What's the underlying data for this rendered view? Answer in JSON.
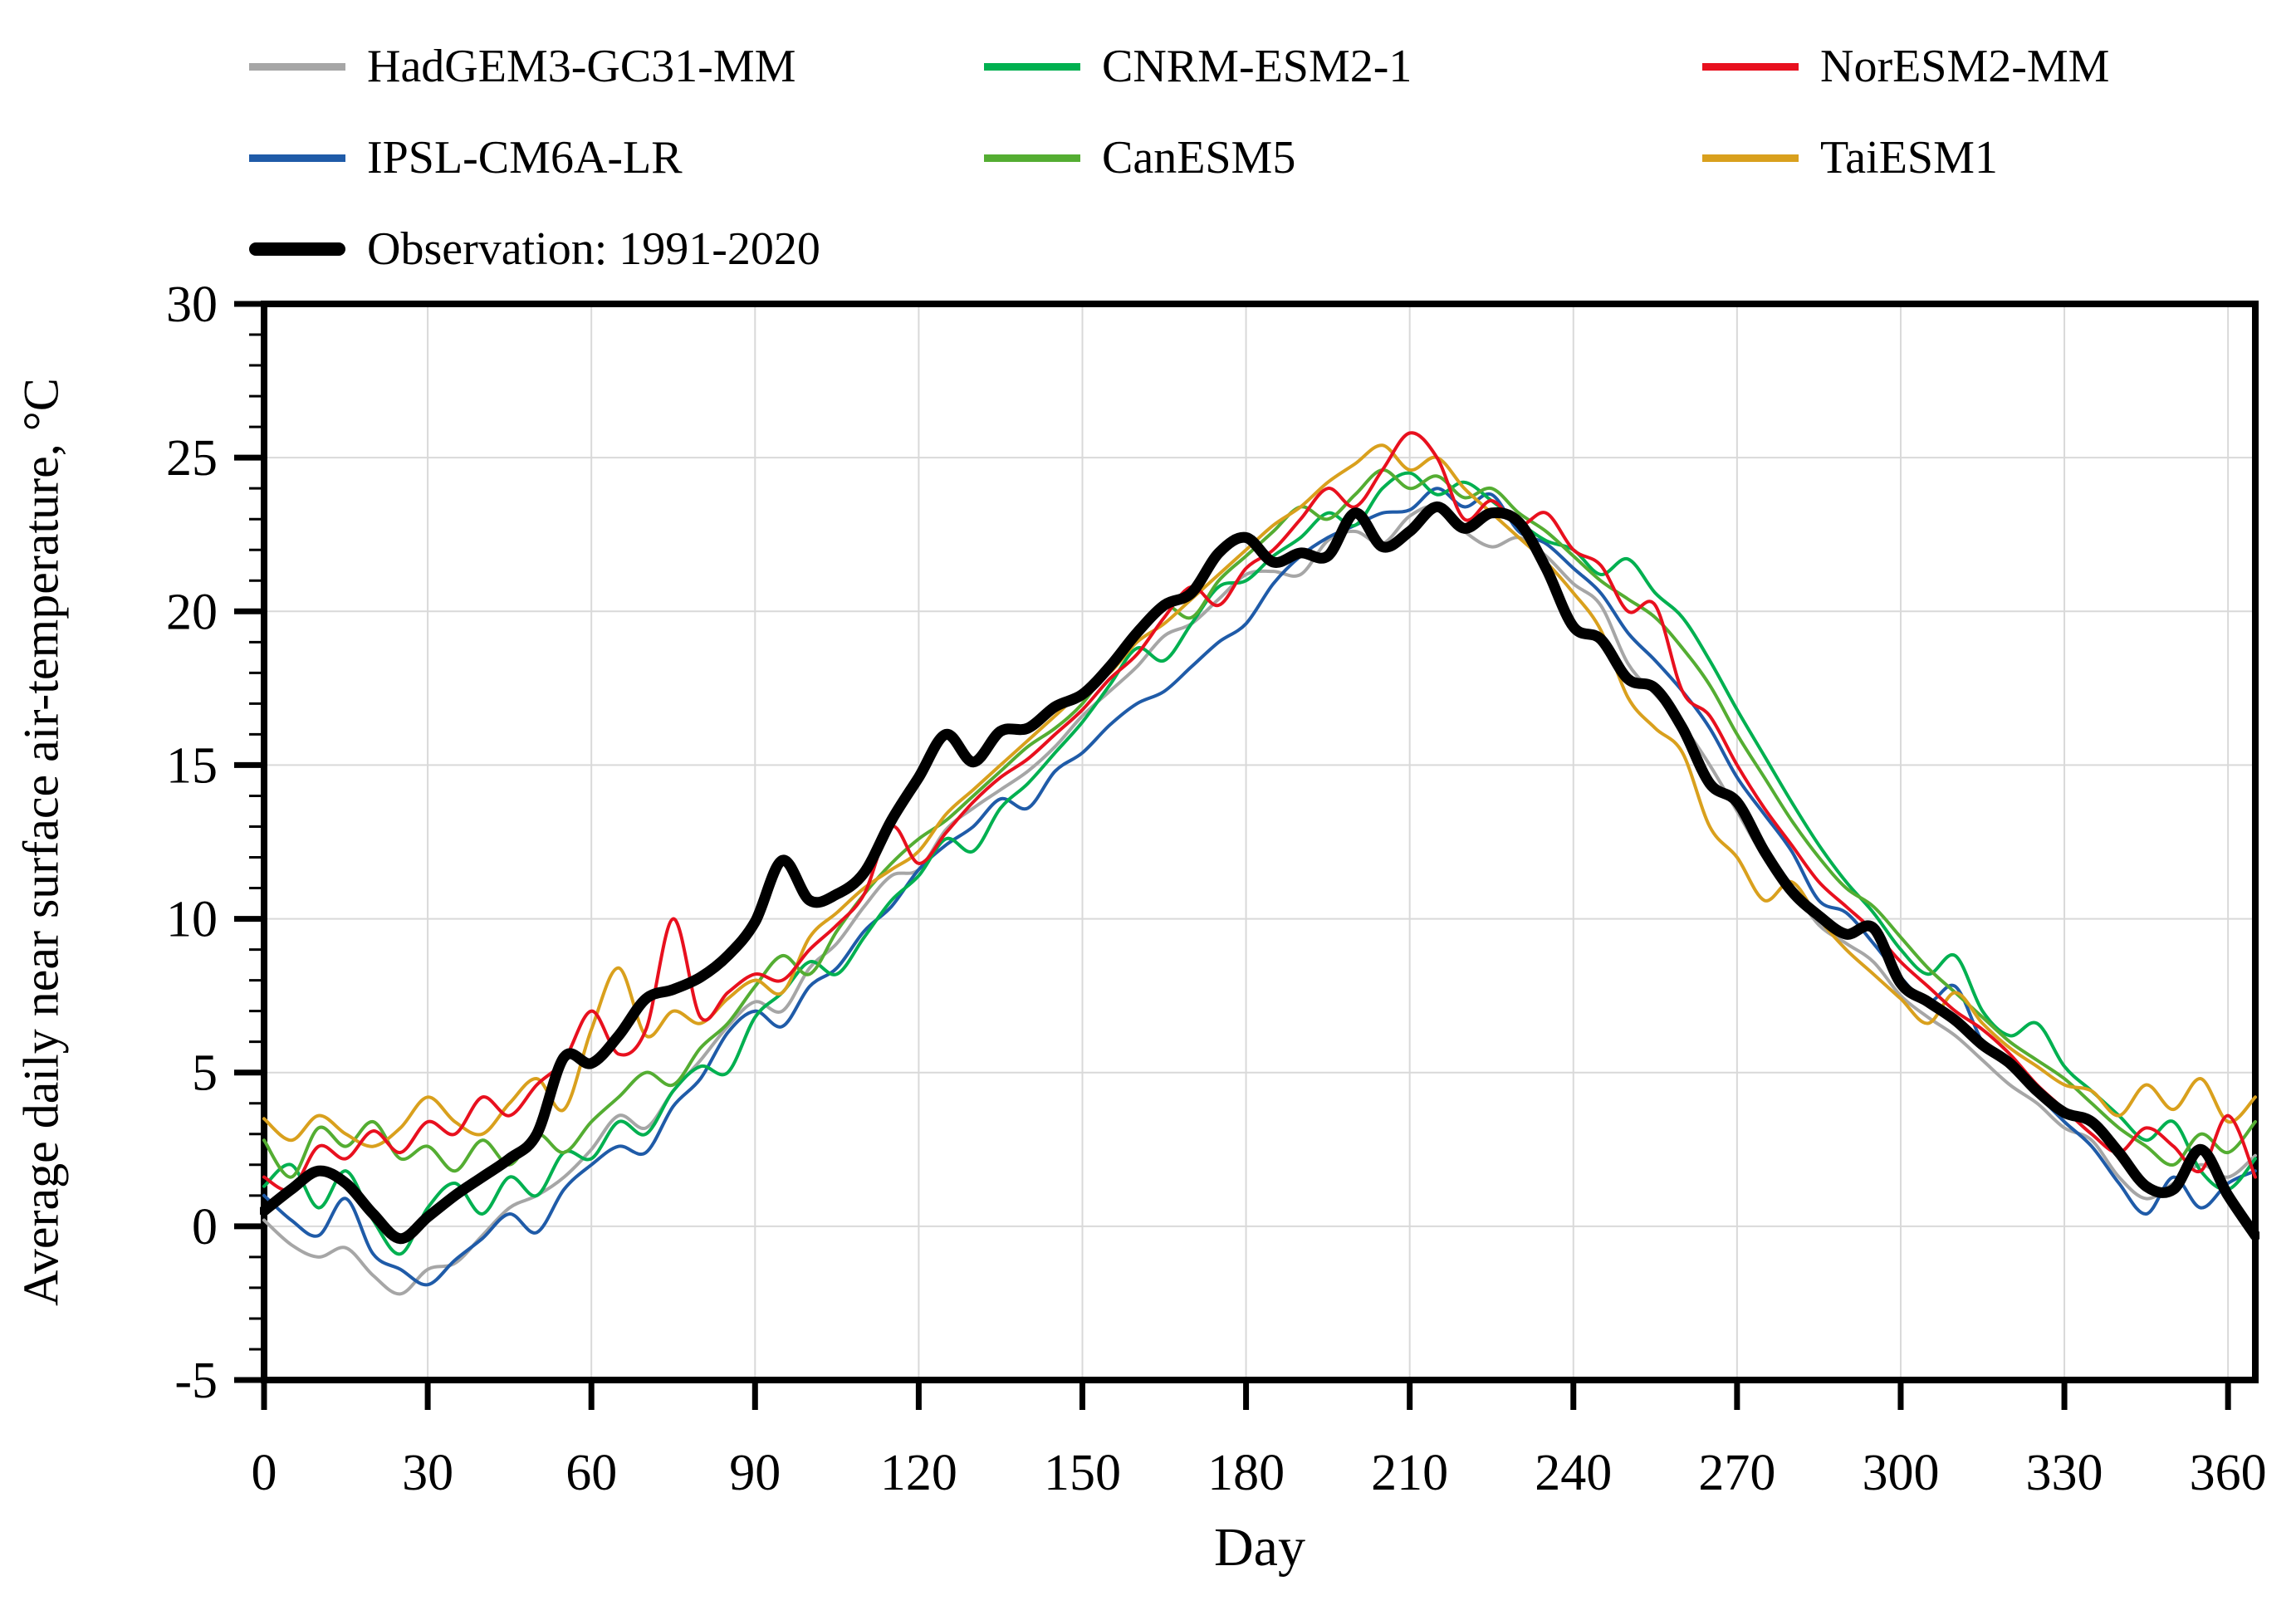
{
  "chart_data": {
    "type": "line",
    "title": "",
    "xlabel": "Day",
    "ylabel": "Average daily near surface air-temperature, °C",
    "xlim": [
      0,
      365
    ],
    "ylim": [
      -5,
      30
    ],
    "x_ticks": [
      0,
      30,
      60,
      90,
      120,
      150,
      180,
      210,
      240,
      270,
      300,
      330,
      360
    ],
    "y_ticks": [
      30,
      25,
      20,
      15,
      10,
      5,
      0,
      -5
    ],
    "y_minor_tick_step": 1,
    "grid": "on",
    "grid_color": "#d9d9d9",
    "axis_color": "#000000",
    "legend_position": "top-left",
    "x": [
      0,
      5,
      10,
      15,
      20,
      25,
      30,
      35,
      40,
      45,
      50,
      55,
      60,
      65,
      70,
      75,
      80,
      85,
      90,
      95,
      100,
      105,
      110,
      115,
      120,
      125,
      130,
      135,
      140,
      145,
      150,
      155,
      160,
      165,
      170,
      175,
      180,
      185,
      190,
      195,
      200,
      205,
      210,
      215,
      220,
      225,
      230,
      235,
      240,
      245,
      250,
      255,
      260,
      265,
      270,
      275,
      280,
      285,
      290,
      295,
      300,
      305,
      310,
      315,
      320,
      325,
      330,
      335,
      340,
      345,
      350,
      355,
      360,
      365
    ],
    "series": [
      {
        "name": "HadGEM3-GC31-MM",
        "color": "#a6a6a6",
        "line_width": 4,
        "values": [
          0.2,
          -0.6,
          -1.0,
          -0.7,
          -1.6,
          -2.2,
          -1.4,
          -1.2,
          -0.3,
          0.6,
          1.0,
          1.6,
          2.5,
          3.6,
          3.2,
          4.4,
          5.4,
          6.5,
          7.3,
          7.0,
          8.4,
          9.2,
          10.4,
          11.4,
          11.6,
          12.9,
          13.6,
          14.2,
          14.8,
          15.6,
          16.6,
          17.4,
          18.2,
          19.2,
          19.6,
          20.4,
          21.2,
          21.3,
          21.2,
          22.3,
          22.6,
          22.2,
          23.1,
          23.4,
          22.6,
          22.1,
          22.4,
          21.8,
          20.9,
          20.2,
          18.3,
          17.3,
          16.3,
          15.0,
          13.5,
          12.0,
          11.0,
          9.8,
          9.2,
          8.6,
          7.5,
          6.8,
          6.2,
          5.4,
          4.6,
          4.0,
          3.2,
          2.8,
          1.6,
          0.9,
          1.4,
          2.0,
          1.6,
          2.3
        ]
      },
      {
        "name": "CNRM-ESM2-1",
        "color": "#00b050",
        "line_width": 4,
        "values": [
          1.3,
          2.0,
          0.6,
          1.8,
          0.2,
          -0.9,
          0.6,
          1.4,
          0.4,
          1.6,
          1.0,
          2.4,
          2.2,
          3.4,
          3.0,
          4.4,
          5.2,
          5.0,
          6.8,
          7.6,
          8.6,
          8.2,
          9.4,
          10.6,
          11.4,
          12.6,
          12.2,
          13.6,
          14.4,
          15.4,
          16.4,
          17.6,
          18.8,
          18.4,
          19.6,
          20.8,
          21.0,
          21.8,
          22.4,
          23.2,
          22.8,
          24.0,
          24.5,
          23.8,
          24.2,
          23.6,
          22.9,
          22.3,
          22.0,
          21.2,
          21.7,
          20.6,
          19.8,
          18.4,
          16.8,
          15.3,
          13.8,
          12.4,
          11.2,
          10.2,
          9.0,
          8.2,
          8.8,
          7.0,
          6.2,
          6.6,
          5.2,
          4.4,
          3.6,
          2.8,
          3.4,
          1.8,
          1.2,
          2.2
        ]
      },
      {
        "name": "NorESM2-MM",
        "color": "#e8101e",
        "line_width": 4,
        "values": [
          1.6,
          1.2,
          2.6,
          2.2,
          3.1,
          2.4,
          3.4,
          3.0,
          4.2,
          3.6,
          4.6,
          5.4,
          7.0,
          5.6,
          6.4,
          10.0,
          6.8,
          7.6,
          8.2,
          8.0,
          9.0,
          9.8,
          10.8,
          13.0,
          11.8,
          12.8,
          13.8,
          14.6,
          15.2,
          16.0,
          16.8,
          17.8,
          18.6,
          19.8,
          20.8,
          20.2,
          21.4,
          22.0,
          23.0,
          24.0,
          23.4,
          24.6,
          25.8,
          25.0,
          23.0,
          23.6,
          22.8,
          23.2,
          22.0,
          21.5,
          20.0,
          20.2,
          17.4,
          16.6,
          15.0,
          13.6,
          12.4,
          11.2,
          10.4,
          9.6,
          8.6,
          7.8,
          7.0,
          6.4,
          5.6,
          4.6,
          3.8,
          3.0,
          2.4,
          3.2,
          2.6,
          1.8,
          3.6,
          1.6
        ]
      },
      {
        "name": "IPSL-CM6A-LR",
        "color": "#1f5ba8",
        "line_width": 4,
        "values": [
          1.0,
          0.2,
          -0.3,
          0.9,
          -0.9,
          -1.4,
          -1.9,
          -1.1,
          -0.4,
          0.4,
          -0.2,
          1.2,
          2.0,
          2.6,
          2.4,
          3.9,
          4.8,
          6.3,
          7.0,
          6.5,
          7.8,
          8.4,
          9.6,
          10.4,
          11.6,
          12.4,
          13.0,
          13.9,
          13.6,
          14.8,
          15.4,
          16.3,
          17.0,
          17.4,
          18.2,
          19.0,
          19.6,
          20.9,
          21.8,
          22.4,
          22.8,
          23.2,
          23.3,
          24.0,
          23.4,
          23.8,
          22.6,
          22.2,
          21.4,
          20.6,
          19.3,
          18.4,
          17.4,
          16.2,
          14.6,
          13.4,
          12.2,
          10.6,
          10.2,
          9.2,
          8.1,
          7.3,
          7.8,
          6.0,
          5.2,
          4.3,
          3.4,
          2.6,
          1.4,
          0.4,
          1.6,
          0.6,
          1.4,
          1.8
        ]
      },
      {
        "name": "CanESM5",
        "color": "#54ad32",
        "line_width": 4,
        "values": [
          2.8,
          1.6,
          3.2,
          2.6,
          3.4,
          2.2,
          2.6,
          1.8,
          2.8,
          2.0,
          3.0,
          2.4,
          3.4,
          4.2,
          5.0,
          4.6,
          5.8,
          6.6,
          7.8,
          8.8,
          8.2,
          9.6,
          10.8,
          11.8,
          12.6,
          13.2,
          14.0,
          14.8,
          15.6,
          16.2,
          17.0,
          18.2,
          19.4,
          20.2,
          19.8,
          21.0,
          21.8,
          22.6,
          23.4,
          23.0,
          23.8,
          24.6,
          24.0,
          24.4,
          23.7,
          24.0,
          23.2,
          22.6,
          21.8,
          21.0,
          20.4,
          19.8,
          18.8,
          17.6,
          16.0,
          14.6,
          13.2,
          12.0,
          11.0,
          10.4,
          9.4,
          8.4,
          7.6,
          6.8,
          6.0,
          5.4,
          4.8,
          4.0,
          3.2,
          2.6,
          2.0,
          3.0,
          2.4,
          3.4
        ]
      },
      {
        "name": "TaiESM1",
        "color": "#d9a01d",
        "line_width": 4,
        "values": [
          3.5,
          2.8,
          3.6,
          3.0,
          2.6,
          3.2,
          4.2,
          3.4,
          3.0,
          4.0,
          4.8,
          3.8,
          6.4,
          8.4,
          6.2,
          7.0,
          6.6,
          7.4,
          8.0,
          7.6,
          9.4,
          10.2,
          11.0,
          11.6,
          12.2,
          13.4,
          14.2,
          15.0,
          15.8,
          16.6,
          17.4,
          18.0,
          19.0,
          19.6,
          20.4,
          21.2,
          22.0,
          22.8,
          23.4,
          24.2,
          24.8,
          25.4,
          24.6,
          25.0,
          24.0,
          23.2,
          22.4,
          21.6,
          20.6,
          19.4,
          17.2,
          16.2,
          15.4,
          13.0,
          12.0,
          10.6,
          11.2,
          10.0,
          9.0,
          8.2,
          7.4,
          6.6,
          7.6,
          6.6,
          5.8,
          5.2,
          4.6,
          4.4,
          3.6,
          4.6,
          3.8,
          4.8,
          3.4,
          4.2
        ]
      },
      {
        "name": "Observation: 1991-2020",
        "color": "#000000",
        "line_width": 13,
        "values": [
          0.5,
          1.2,
          1.8,
          1.4,
          0.4,
          -0.4,
          0.3,
          1.0,
          1.6,
          2.2,
          3.0,
          5.5,
          5.3,
          6.2,
          7.4,
          7.7,
          8.1,
          8.8,
          9.9,
          11.9,
          10.6,
          10.8,
          11.5,
          13.2,
          14.6,
          16.0,
          15.1,
          16.1,
          16.2,
          16.9,
          17.3,
          18.2,
          19.3,
          20.2,
          20.6,
          21.9,
          22.4,
          21.6,
          21.9,
          21.8,
          23.2,
          22.1,
          22.6,
          23.4,
          22.7,
          23.2,
          22.9,
          21.4,
          19.5,
          19.1,
          17.8,
          17.5,
          16.2,
          14.4,
          13.8,
          12.2,
          10.9,
          10.1,
          9.5,
          9.7,
          7.9,
          7.3,
          6.7,
          5.9,
          5.3,
          4.4,
          3.7,
          3.4,
          2.4,
          1.3,
          1.2,
          2.5,
          1.0,
          -0.3
        ]
      }
    ]
  }
}
